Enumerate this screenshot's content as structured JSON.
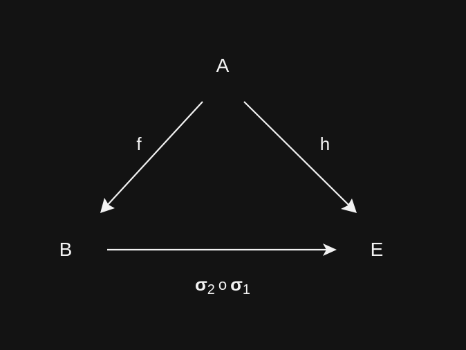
{
  "diagram": {
    "nodes": {
      "a": "A",
      "b": "B",
      "e": "E"
    },
    "edges": {
      "a_to_b": {
        "label": "f"
      },
      "a_to_e": {
        "label": "h"
      },
      "b_to_e": {
        "label_sigma_left": "σ",
        "label_sub_left": "2",
        "label_op": "o",
        "label_sigma_right": "σ",
        "label_sub_right": "1"
      }
    },
    "colors": {
      "background": "#131313",
      "foreground": "#f2f2f2"
    }
  }
}
